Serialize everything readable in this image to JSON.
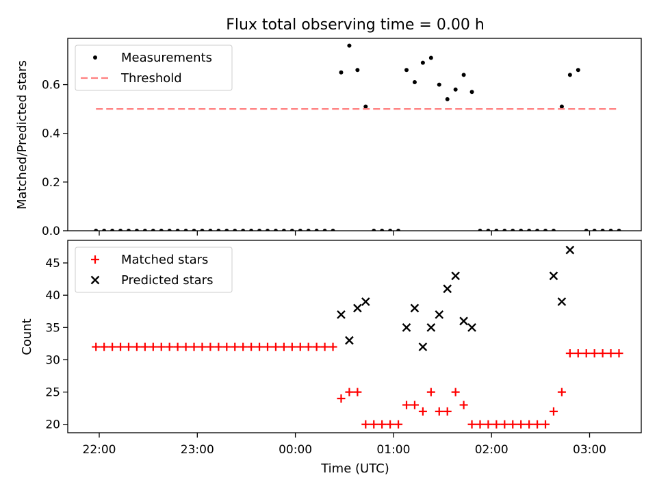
{
  "chart_data": [
    {
      "type": "scatter",
      "title": "Flux total observing time = 0.00 h",
      "xlabel": "",
      "ylabel": "Matched/Predicted stars",
      "ylim": [
        0,
        0.79
      ],
      "yticks": [
        0.0,
        0.2,
        0.4,
        0.6
      ],
      "ytick_labels": [
        "0.0",
        "0.2",
        "0.4",
        "0.6"
      ],
      "xticks": [
        "22:00",
        "23:00",
        "00:00",
        "01:00",
        "02:00",
        "03:00"
      ],
      "legend_position": "upper-left",
      "series": [
        {
          "name": "Measurements",
          "marker": "dot",
          "color": "#000000",
          "x": [
            "21:58",
            "22:03",
            "22:08",
            "22:13",
            "22:18",
            "22:23",
            "22:28",
            "22:33",
            "22:38",
            "22:43",
            "22:48",
            "22:53",
            "22:58",
            "23:03",
            "23:08",
            "23:13",
            "23:18",
            "23:23",
            "23:28",
            "23:33",
            "23:38",
            "23:43",
            "23:48",
            "23:53",
            "23:58",
            "00:03",
            "00:08",
            "00:13",
            "00:18",
            "00:23",
            "00:28",
            "00:33",
            "00:38",
            "00:43",
            "00:48",
            "00:53",
            "00:58",
            "01:03",
            "01:08",
            "01:13",
            "01:18",
            "01:23",
            "01:28",
            "01:33",
            "01:38",
            "01:43",
            "01:48",
            "01:53",
            "01:58",
            "02:03",
            "02:08",
            "02:13",
            "02:18",
            "02:23",
            "02:28",
            "02:33",
            "02:38",
            "02:43",
            "02:48",
            "02:53",
            "02:58",
            "03:03",
            "03:08",
            "03:13",
            "03:18"
          ],
          "y": [
            0,
            0,
            0,
            0,
            0,
            0,
            0,
            0,
            0,
            0,
            0,
            0,
            0,
            0,
            0,
            0,
            0,
            0,
            0,
            0,
            0,
            0,
            0,
            0,
            0,
            0,
            0,
            0,
            0,
            0,
            0.65,
            0.76,
            0.66,
            0.51,
            0,
            0,
            0,
            0,
            0.66,
            0.61,
            0.69,
            0.71,
            0.6,
            0.54,
            0.58,
            0.64,
            0.57,
            0,
            0,
            0,
            0,
            0,
            0,
            0,
            0,
            0,
            0,
            0.51,
            0.64,
            0.66,
            0,
            0,
            0,
            0,
            0
          ]
        },
        {
          "name": "Threshold",
          "style": "dashed",
          "color": "#ff7f7f",
          "x": [
            "21:58",
            "03:18"
          ],
          "y": [
            0.5,
            0.5
          ]
        }
      ]
    },
    {
      "type": "scatter",
      "title": "",
      "xlabel": "Time (UTC)",
      "ylabel": "Count",
      "ylim": [
        18.7,
        48.5
      ],
      "yticks": [
        20,
        25,
        30,
        35,
        40,
        45
      ],
      "ytick_labels": [
        "20",
        "25",
        "30",
        "35",
        "40",
        "45"
      ],
      "xticks": [
        "22:00",
        "23:00",
        "00:00",
        "01:00",
        "02:00",
        "03:00"
      ],
      "legend_position": "upper-left",
      "series": [
        {
          "name": "Matched stars",
          "marker": "plus",
          "color": "#ff0000",
          "x": [
            "21:58",
            "22:03",
            "22:08",
            "22:13",
            "22:18",
            "22:23",
            "22:28",
            "22:33",
            "22:38",
            "22:43",
            "22:48",
            "22:53",
            "22:58",
            "23:03",
            "23:08",
            "23:13",
            "23:18",
            "23:23",
            "23:28",
            "23:33",
            "23:38",
            "23:43",
            "23:48",
            "23:53",
            "23:58",
            "00:03",
            "00:08",
            "00:13",
            "00:18",
            "00:23",
            "00:28",
            "00:33",
            "00:38",
            "00:43",
            "00:48",
            "00:53",
            "00:58",
            "01:03",
            "01:08",
            "01:13",
            "01:18",
            "01:23",
            "01:28",
            "01:33",
            "01:38",
            "01:43",
            "01:48",
            "01:53",
            "01:58",
            "02:03",
            "02:08",
            "02:13",
            "02:18",
            "02:23",
            "02:28",
            "02:33",
            "02:38",
            "02:43",
            "02:48",
            "02:53",
            "02:58",
            "03:03",
            "03:08",
            "03:13",
            "03:18"
          ],
          "y": [
            32,
            32,
            32,
            32,
            32,
            32,
            32,
            32,
            32,
            32,
            32,
            32,
            32,
            32,
            32,
            32,
            32,
            32,
            32,
            32,
            32,
            32,
            32,
            32,
            32,
            32,
            32,
            32,
            32,
            32,
            24,
            25,
            25,
            20,
            20,
            20,
            20,
            20,
            23,
            23,
            22,
            25,
            22,
            22,
            25,
            23,
            20,
            20,
            20,
            20,
            20,
            20,
            20,
            20,
            20,
            20,
            22,
            25,
            31,
            31,
            31,
            31,
            31,
            31,
            31
          ]
        },
        {
          "name": "Predicted stars",
          "marker": "x",
          "color": "#000000",
          "x": [
            "00:28",
            "00:33",
            "00:38",
            "00:43",
            "01:08",
            "01:13",
            "01:18",
            "01:23",
            "01:28",
            "01:33",
            "01:38",
            "01:43",
            "01:48",
            "02:38",
            "02:43",
            "02:48"
          ],
          "y": [
            37,
            33,
            38,
            39,
            35,
            38,
            32,
            35,
            37,
            41,
            43,
            36,
            35,
            43,
            39,
            47
          ]
        }
      ]
    }
  ]
}
